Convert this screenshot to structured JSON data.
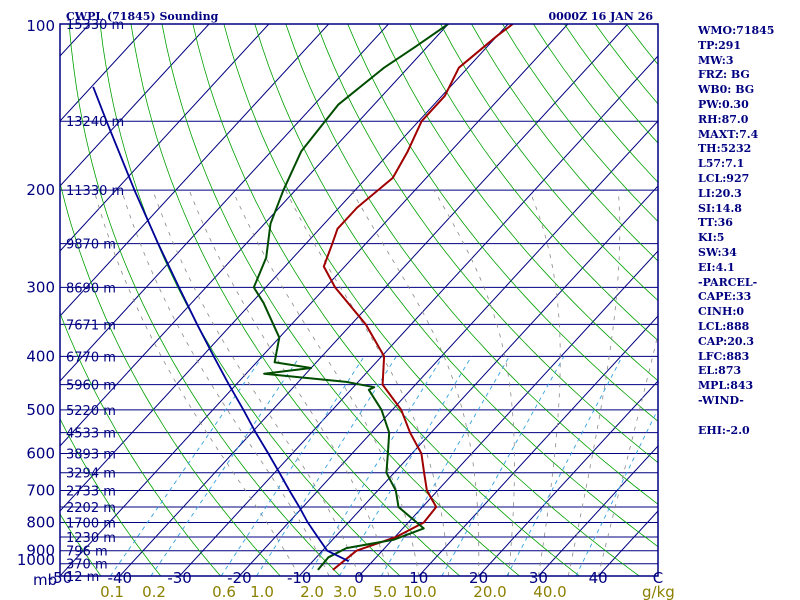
{
  "title_left": "CWPL (71845) Sounding",
  "title_right": "0000Z 16 JAN 26",
  "mb_label": "mb",
  "gkg_label": "g/kg",
  "colors": {
    "frame": "#000080",
    "isobar": "#000080",
    "isotherm": "#000080",
    "dry_adiabat": "#00a000",
    "moist_adiabat": "#8a8a8a",
    "mixing_ratio": "#33a0e0",
    "temperature": "#a00000",
    "dewpoint": "#004d00",
    "parcel": "#000099",
    "text": "#000080",
    "mixing_text": "#8b8000"
  },
  "indices": [
    "WMO:71845",
    "TP:291",
    "MW:3",
    "FRZ: BG",
    "WB0: BG",
    "PW:0.30",
    "RH:87.0",
    "MAXT:7.4",
    "TH:5232",
    "L57:7.1",
    "LCL:927",
    "LI:20.3",
    "SI:14.8",
    "TT:36",
    "KI:5",
    "SW:34",
    "EI:4.1",
    "-PARCEL-",
    "CAPE:33",
    "CINH:0",
    "LCL:888",
    "CAP:20.3",
    "LFC:883",
    "EL:873",
    "MPL:843",
    "-WIND-",
    "",
    "EHI:-2.0"
  ],
  "chart_data": {
    "type": "line",
    "chart_kind": "skew-T log-P sounding",
    "pressure_ticks": [
      100,
      200,
      300,
      400,
      500,
      600,
      700,
      800,
      900,
      1000
    ],
    "temperature_ticks": [
      -50,
      -40,
      -30,
      -20,
      -10,
      0,
      10,
      20,
      30,
      40
    ],
    "temperature_tick_labels": [
      "-50",
      "-40",
      "-30",
      "-20",
      "-10",
      "0",
      "10",
      "20",
      "30",
      "40"
    ],
    "corner_temp_label": "C",
    "heights": [
      {
        "p": 100,
        "label": "15330 m"
      },
      {
        "p": 150,
        "label": "13240 m"
      },
      {
        "p": 200,
        "label": "11330 m"
      },
      {
        "p": 250,
        "label": "9870 m"
      },
      {
        "p": 300,
        "label": "8690 m"
      },
      {
        "p": 350,
        "label": "7671 m"
      },
      {
        "p": 400,
        "label": "6770 m"
      },
      {
        "p": 450,
        "label": "5960 m"
      },
      {
        "p": 500,
        "label": "5220 m"
      },
      {
        "p": 550,
        "label": "4533 m"
      },
      {
        "p": 600,
        "label": "3893 m"
      },
      {
        "p": 650,
        "label": "3294 m"
      },
      {
        "p": 700,
        "label": "2733 m"
      },
      {
        "p": 750,
        "label": "2202 m"
      },
      {
        "p": 800,
        "label": "1700 m"
      },
      {
        "p": 850,
        "label": "1230 m"
      },
      {
        "p": 900,
        "label": "796 m"
      },
      {
        "p": 950,
        "label": "370 m"
      },
      {
        "p": 1000,
        "label": "12 m"
      }
    ],
    "mixing_ratio_labels": [
      "0.1",
      "0.2",
      "0.6",
      "1.0",
      "2.0",
      "3.0",
      "5.0",
      "10.0",
      "20.0",
      "40.0"
    ],
    "mixing_ratio_values": [
      0.1,
      0.2,
      0.6,
      1.0,
      2.0,
      3.0,
      5.0,
      10.0,
      20.0,
      40.0
    ],
    "series": [
      {
        "name": "temperature",
        "points": [
          [
            975,
            -5.3
          ],
          [
            900,
            -4.3
          ],
          [
            850,
            0.2
          ],
          [
            800,
            2.6
          ],
          [
            750,
            2.3
          ],
          [
            700,
            -1.8
          ],
          [
            650,
            -5.0
          ],
          [
            600,
            -8.4
          ],
          [
            550,
            -13.5
          ],
          [
            500,
            -18.5
          ],
          [
            450,
            -25.5
          ],
          [
            400,
            -29.6
          ],
          [
            350,
            -37.6
          ],
          [
            300,
            -48.4
          ],
          [
            275,
            -53.5
          ],
          [
            250,
            -55.6
          ],
          [
            235,
            -57.0
          ],
          [
            215,
            -57.0
          ],
          [
            190,
            -55.6
          ],
          [
            170,
            -57.2
          ],
          [
            150,
            -59.5
          ],
          [
            135,
            -59.5
          ],
          [
            120,
            -61.5
          ],
          [
            105,
            -60.0
          ],
          [
            100,
            -59.2
          ]
        ]
      },
      {
        "name": "dewpoint",
        "points": [
          [
            975,
            -7.8
          ],
          [
            925,
            -8.0
          ],
          [
            890,
            -6.4
          ],
          [
            860,
            0.2
          ],
          [
            820,
            3.5
          ],
          [
            750,
            -4.0
          ],
          [
            700,
            -7.0
          ],
          [
            650,
            -11.3
          ],
          [
            600,
            -14.0
          ],
          [
            550,
            -17.0
          ],
          [
            500,
            -21.8
          ],
          [
            460,
            -27.0
          ],
          [
            455,
            -26.5
          ],
          [
            445,
            -32.0
          ],
          [
            430,
            -47.0
          ],
          [
            420,
            -40.0
          ],
          [
            410,
            -47.0
          ],
          [
            370,
            -50.0
          ],
          [
            320,
            -58.0
          ],
          [
            300,
            -62.0
          ],
          [
            265,
            -64.5
          ],
          [
            230,
            -69.0
          ],
          [
            200,
            -72.0
          ],
          [
            170,
            -75.0
          ],
          [
            140,
            -76.0
          ],
          [
            120,
            -74.0
          ],
          [
            110,
            -72.0
          ],
          [
            100,
            -70.0
          ]
        ]
      },
      {
        "name": "parcel",
        "points": [
          [
            940,
            -4.0
          ],
          [
            900,
            -9.2
          ],
          [
            850,
            -12.9
          ],
          [
            800,
            -16.8
          ],
          [
            750,
            -20.6
          ],
          [
            700,
            -24.8
          ],
          [
            650,
            -29.2
          ],
          [
            600,
            -34.0
          ],
          [
            550,
            -39.3
          ],
          [
            500,
            -44.9
          ],
          [
            450,
            -51.2
          ],
          [
            400,
            -58.1
          ],
          [
            350,
            -65.8
          ],
          [
            300,
            -74.5
          ],
          [
            250,
            -84.7
          ],
          [
            200,
            -96.9
          ],
          [
            150,
            -112.2
          ],
          [
            130,
            -119.7
          ]
        ]
      }
    ],
    "pressure_range": [
      1000,
      100
    ],
    "temperature_range_at_1000": [
      -50,
      50
    ]
  }
}
